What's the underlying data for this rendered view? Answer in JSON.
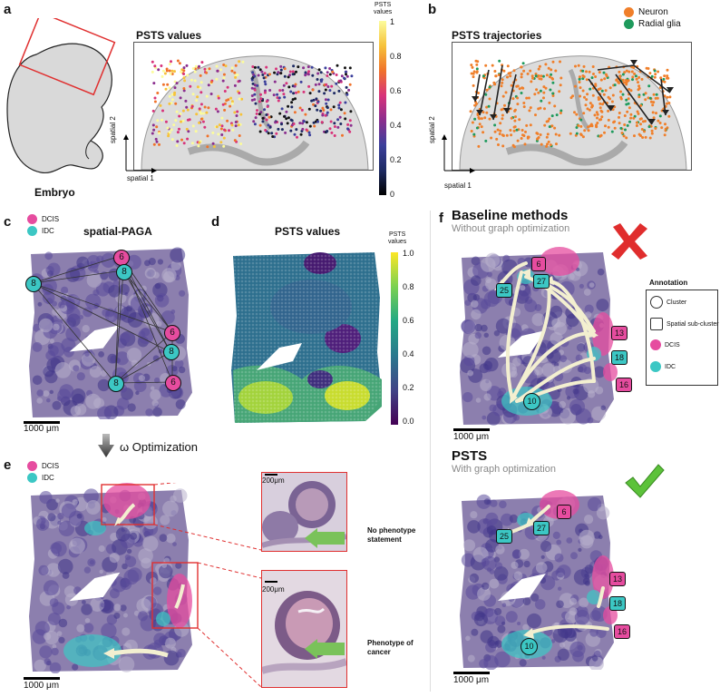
{
  "panel_a": {
    "letter": "a",
    "embryo_label": "Embryo",
    "title": "PSTS values",
    "axis_y": "spatial 2",
    "axis_x": "spatial 1",
    "colorbar_label": "PSTS\nvalues",
    "colorbar_ticks": [
      "1",
      "0.8",
      "0.6",
      "0.4",
      "0.2",
      "0"
    ]
  },
  "panel_b": {
    "letter": "b",
    "title": "PSTS trajectories",
    "axis_y": "spatial 2",
    "axis_x": "spatial 1",
    "legend": [
      {
        "label": "Neuron",
        "color": "#f07f2a"
      },
      {
        "label": "Radial glia",
        "color": "#1e9a5c"
      }
    ]
  },
  "panel_c": {
    "letter": "c",
    "title": "spatial-PAGA",
    "legend": [
      {
        "label": "DCIS",
        "color": "#e64c9f"
      },
      {
        "label": "IDC",
        "color": "#3cc7c4"
      }
    ],
    "nodes": [
      {
        "label": "6",
        "type": "DCIS"
      },
      {
        "label": "8",
        "type": "IDC"
      },
      {
        "label": "8",
        "type": "IDC"
      },
      {
        "label": "6",
        "type": "DCIS"
      },
      {
        "label": "8",
        "type": "IDC"
      },
      {
        "label": "6",
        "type": "DCIS"
      },
      {
        "label": "8",
        "type": "IDC"
      }
    ],
    "scalebar": "1000 μm"
  },
  "panel_d": {
    "letter": "d",
    "title": "PSTS values",
    "colorbar_label": "PSTS\nvalues",
    "colorbar_ticks": [
      "1.0",
      "0.8",
      "0.6",
      "0.4",
      "0.2",
      "0.0"
    ]
  },
  "optimization_label": "ω Optimization",
  "panel_e": {
    "letter": "e",
    "legend": [
      {
        "label": "DCIS",
        "color": "#e64c9f"
      },
      {
        "label": "IDC",
        "color": "#3cc7c4"
      }
    ],
    "scalebar": "1000 μm",
    "inset_top_scale": "200μm",
    "inset_bottom_scale": "200μm",
    "note_top": "No phenotype\nstatement",
    "note_bottom": "Phenotype of\ncancer"
  },
  "panel_f": {
    "letter": "f",
    "baseline_title": "Baseline methods",
    "baseline_sub": "Without graph optimization",
    "psts_title": "PSTS",
    "psts_sub": "With graph optimization",
    "scalebar": "1000 μm",
    "nodes_top": [
      {
        "label": "6",
        "type": "DCIS"
      },
      {
        "label": "27",
        "type": "IDC"
      },
      {
        "label": "25",
        "type": "IDC"
      },
      {
        "label": "13",
        "type": "DCIS"
      },
      {
        "label": "18",
        "type": "IDC"
      },
      {
        "label": "16",
        "type": "DCIS"
      },
      {
        "label": "10",
        "type": "IDC"
      }
    ],
    "annotation_title": "Annotation",
    "annotation_items": [
      {
        "label": "Cluster",
        "shape": "circle"
      },
      {
        "label": "Spatial sub-cluster",
        "shape": "square"
      },
      {
        "label": "DCIS",
        "shape": "dot",
        "color": "#e64c9f"
      },
      {
        "label": "IDC",
        "shape": "dot",
        "color": "#3cc7c4"
      }
    ]
  }
}
